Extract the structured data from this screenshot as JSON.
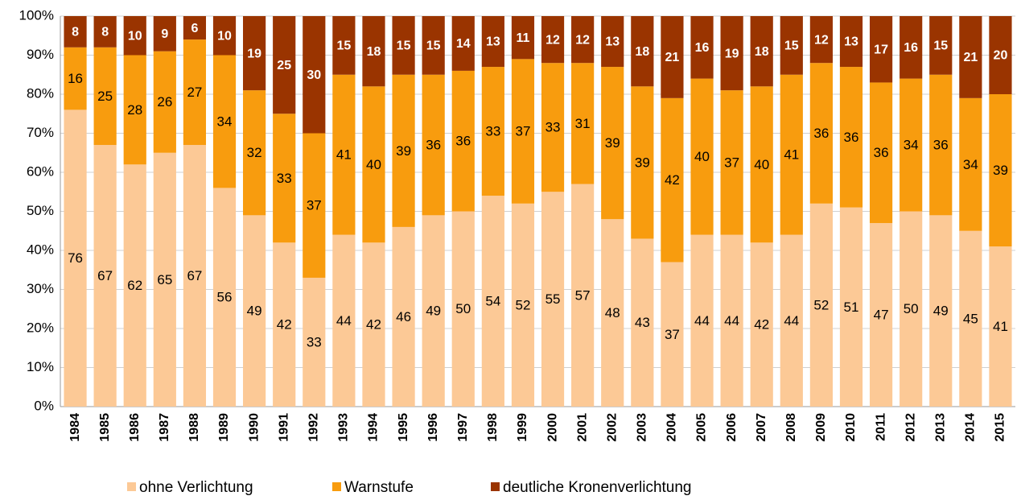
{
  "chart_data": {
    "type": "stacked_bar",
    "categories": [
      "1984",
      "1985",
      "1986",
      "1987",
      "1988",
      "1989",
      "1990",
      "1991",
      "1992",
      "1993",
      "1994",
      "1995",
      "1996",
      "1997",
      "1998",
      "1999",
      "2000",
      "2001",
      "2002",
      "2003",
      "2004",
      "2005",
      "2006",
      "2007",
      "2008",
      "2009",
      "2010",
      "2011",
      "2012",
      "2013",
      "2014",
      "2015"
    ],
    "series": [
      {
        "name": "ohne Verlichtung",
        "color": "#fcc996",
        "values": [
          76,
          67,
          62,
          65,
          67,
          56,
          49,
          42,
          33,
          44,
          42,
          46,
          49,
          50,
          54,
          52,
          55,
          57,
          48,
          43,
          37,
          44,
          44,
          42,
          44,
          52,
          51,
          47,
          50,
          49,
          45,
          41
        ]
      },
      {
        "name": "Warnstufe",
        "color": "#f89c0e",
        "values": [
          16,
          25,
          28,
          26,
          27,
          34,
          32,
          33,
          37,
          41,
          40,
          39,
          36,
          36,
          33,
          37,
          33,
          31,
          39,
          39,
          42,
          40,
          37,
          40,
          41,
          36,
          36,
          36,
          34,
          36,
          34,
          39
        ]
      },
      {
        "name": "deutliche Kronenverlichtung",
        "color": "#9a3400",
        "values": [
          8,
          8,
          10,
          9,
          6,
          10,
          19,
          25,
          30,
          15,
          18,
          15,
          15,
          14,
          13,
          11,
          12,
          12,
          13,
          18,
          21,
          16,
          19,
          18,
          15,
          12,
          13,
          17,
          16,
          15,
          21,
          20
        ]
      }
    ],
    "ylim": [
      0,
      100
    ],
    "yticks": [
      {
        "value": 0,
        "label": "0%"
      },
      {
        "value": 10,
        "label": "10%"
      },
      {
        "value": 20,
        "label": "20%"
      },
      {
        "value": 30,
        "label": "30%"
      },
      {
        "value": 40,
        "label": "40%"
      },
      {
        "value": 50,
        "label": "50%"
      },
      {
        "value": 60,
        "label": "60%"
      },
      {
        "value": 70,
        "label": "70%"
      },
      {
        "value": 80,
        "label": "80%"
      },
      {
        "value": 90,
        "label": "90%"
      },
      {
        "value": 100,
        "label": "100%"
      }
    ],
    "grid": true,
    "legend": "bottom"
  }
}
